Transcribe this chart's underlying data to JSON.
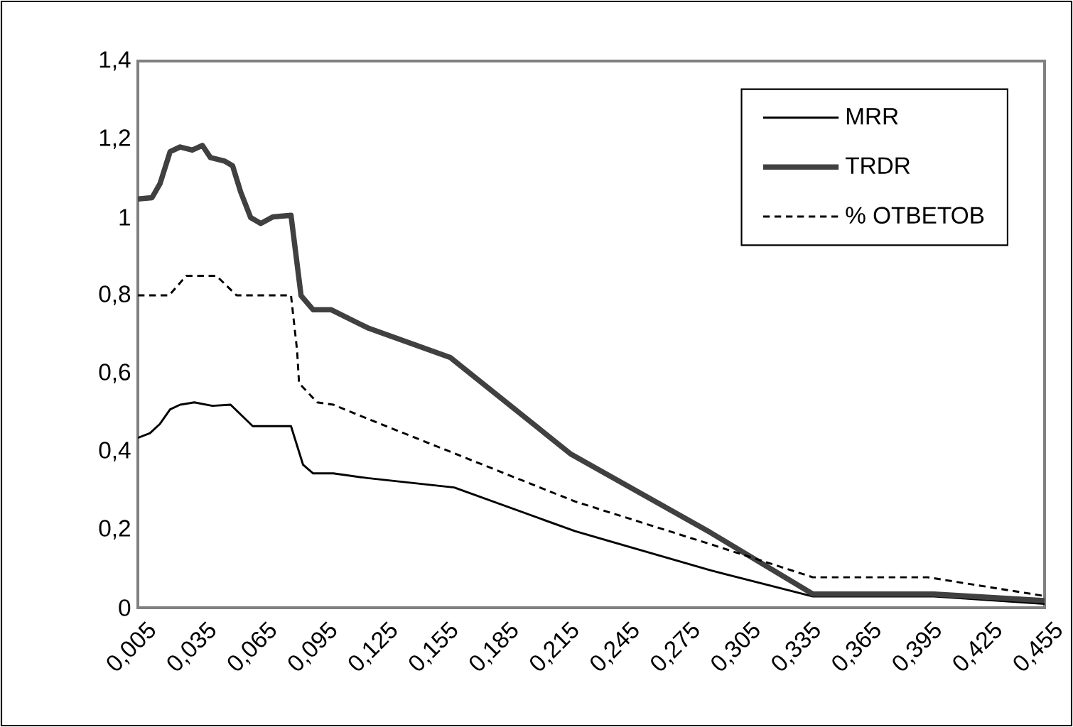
{
  "chart_data": {
    "type": "line",
    "xlim": [
      0.005,
      0.455
    ],
    "xticks": [
      {
        "value": 0.005,
        "label": "0,005"
      },
      {
        "value": 0.035,
        "label": "0,035"
      },
      {
        "value": 0.065,
        "label": "0,065"
      },
      {
        "value": 0.095,
        "label": "0,095"
      },
      {
        "value": 0.125,
        "label": "0,125"
      },
      {
        "value": 0.155,
        "label": "0,155"
      },
      {
        "value": 0.185,
        "label": "0,185"
      },
      {
        "value": 0.215,
        "label": "0,215"
      },
      {
        "value": 0.245,
        "label": "0,245"
      },
      {
        "value": 0.275,
        "label": "0,275"
      },
      {
        "value": 0.305,
        "label": "0,305"
      },
      {
        "value": 0.335,
        "label": "0,335"
      },
      {
        "value": 0.365,
        "label": "0,365"
      },
      {
        "value": 0.395,
        "label": "0,395"
      },
      {
        "value": 0.425,
        "label": "0,425"
      },
      {
        "value": 0.455,
        "label": "0,455"
      }
    ],
    "ylim": [
      0,
      1.4
    ],
    "yticks": [
      0,
      {
        "value": 0.2,
        "label": "0,2"
      },
      {
        "value": 0.4,
        "label": "0,4"
      },
      {
        "value": 0.6,
        "label": "0,6"
      },
      {
        "value": 0.8,
        "label": "0,8"
      },
      1,
      {
        "value": 1.2,
        "label": "1,2"
      },
      {
        "value": 1.4,
        "label": "1,4"
      }
    ],
    "grid": false,
    "legend": "top right",
    "marker": "none",
    "series": [
      {
        "name": "MRR",
        "color": "#000000",
        "line_style": "solid",
        "x": [
          0.005,
          0.011,
          0.016,
          0.021,
          0.026,
          0.033,
          0.042,
          0.051,
          0.062,
          0.081,
          0.087,
          0.092,
          0.102,
          0.119,
          0.162,
          0.222,
          0.289,
          0.34,
          0.4,
          0.455
        ],
        "values": [
          0.435,
          0.447,
          0.471,
          0.508,
          0.52,
          0.526,
          0.517,
          0.52,
          0.465,
          0.465,
          0.366,
          0.344,
          0.344,
          0.332,
          0.308,
          0.196,
          0.096,
          0.029,
          0.029,
          0.01
        ]
      },
      {
        "name": "TRDR",
        "color": "#404040",
        "line_style": "solid",
        "x": [
          0.005,
          0.012,
          0.016,
          0.021,
          0.026,
          0.032,
          0.037,
          0.041,
          0.048,
          0.052,
          0.056,
          0.061,
          0.066,
          0.072,
          0.081,
          0.086,
          0.092,
          0.101,
          0.119,
          0.16,
          0.22,
          0.289,
          0.34,
          0.4,
          0.455
        ],
        "values": [
          1.047,
          1.05,
          1.086,
          1.168,
          1.18,
          1.172,
          1.184,
          1.153,
          1.144,
          1.132,
          1.065,
          0.999,
          0.984,
          1.001,
          1.005,
          0.799,
          0.763,
          0.763,
          0.717,
          0.641,
          0.393,
          0.193,
          0.035,
          0.035,
          0.018
        ]
      },
      {
        "name": "% ОТВЕТОВ",
        "color": "#000000",
        "line_style": "dashed",
        "x": [
          0.005,
          0.0205,
          0.029,
          0.044,
          0.054,
          0.081,
          0.084,
          0.085,
          0.094,
          0.102,
          0.119,
          0.222,
          0.289,
          0.34,
          0.397,
          0.455
        ],
        "values": [
          0.8,
          0.8,
          0.85,
          0.85,
          0.8,
          0.8,
          0.66,
          0.575,
          0.526,
          0.52,
          0.484,
          0.272,
          0.163,
          0.078,
          0.078,
          0.03
        ]
      }
    ]
  }
}
